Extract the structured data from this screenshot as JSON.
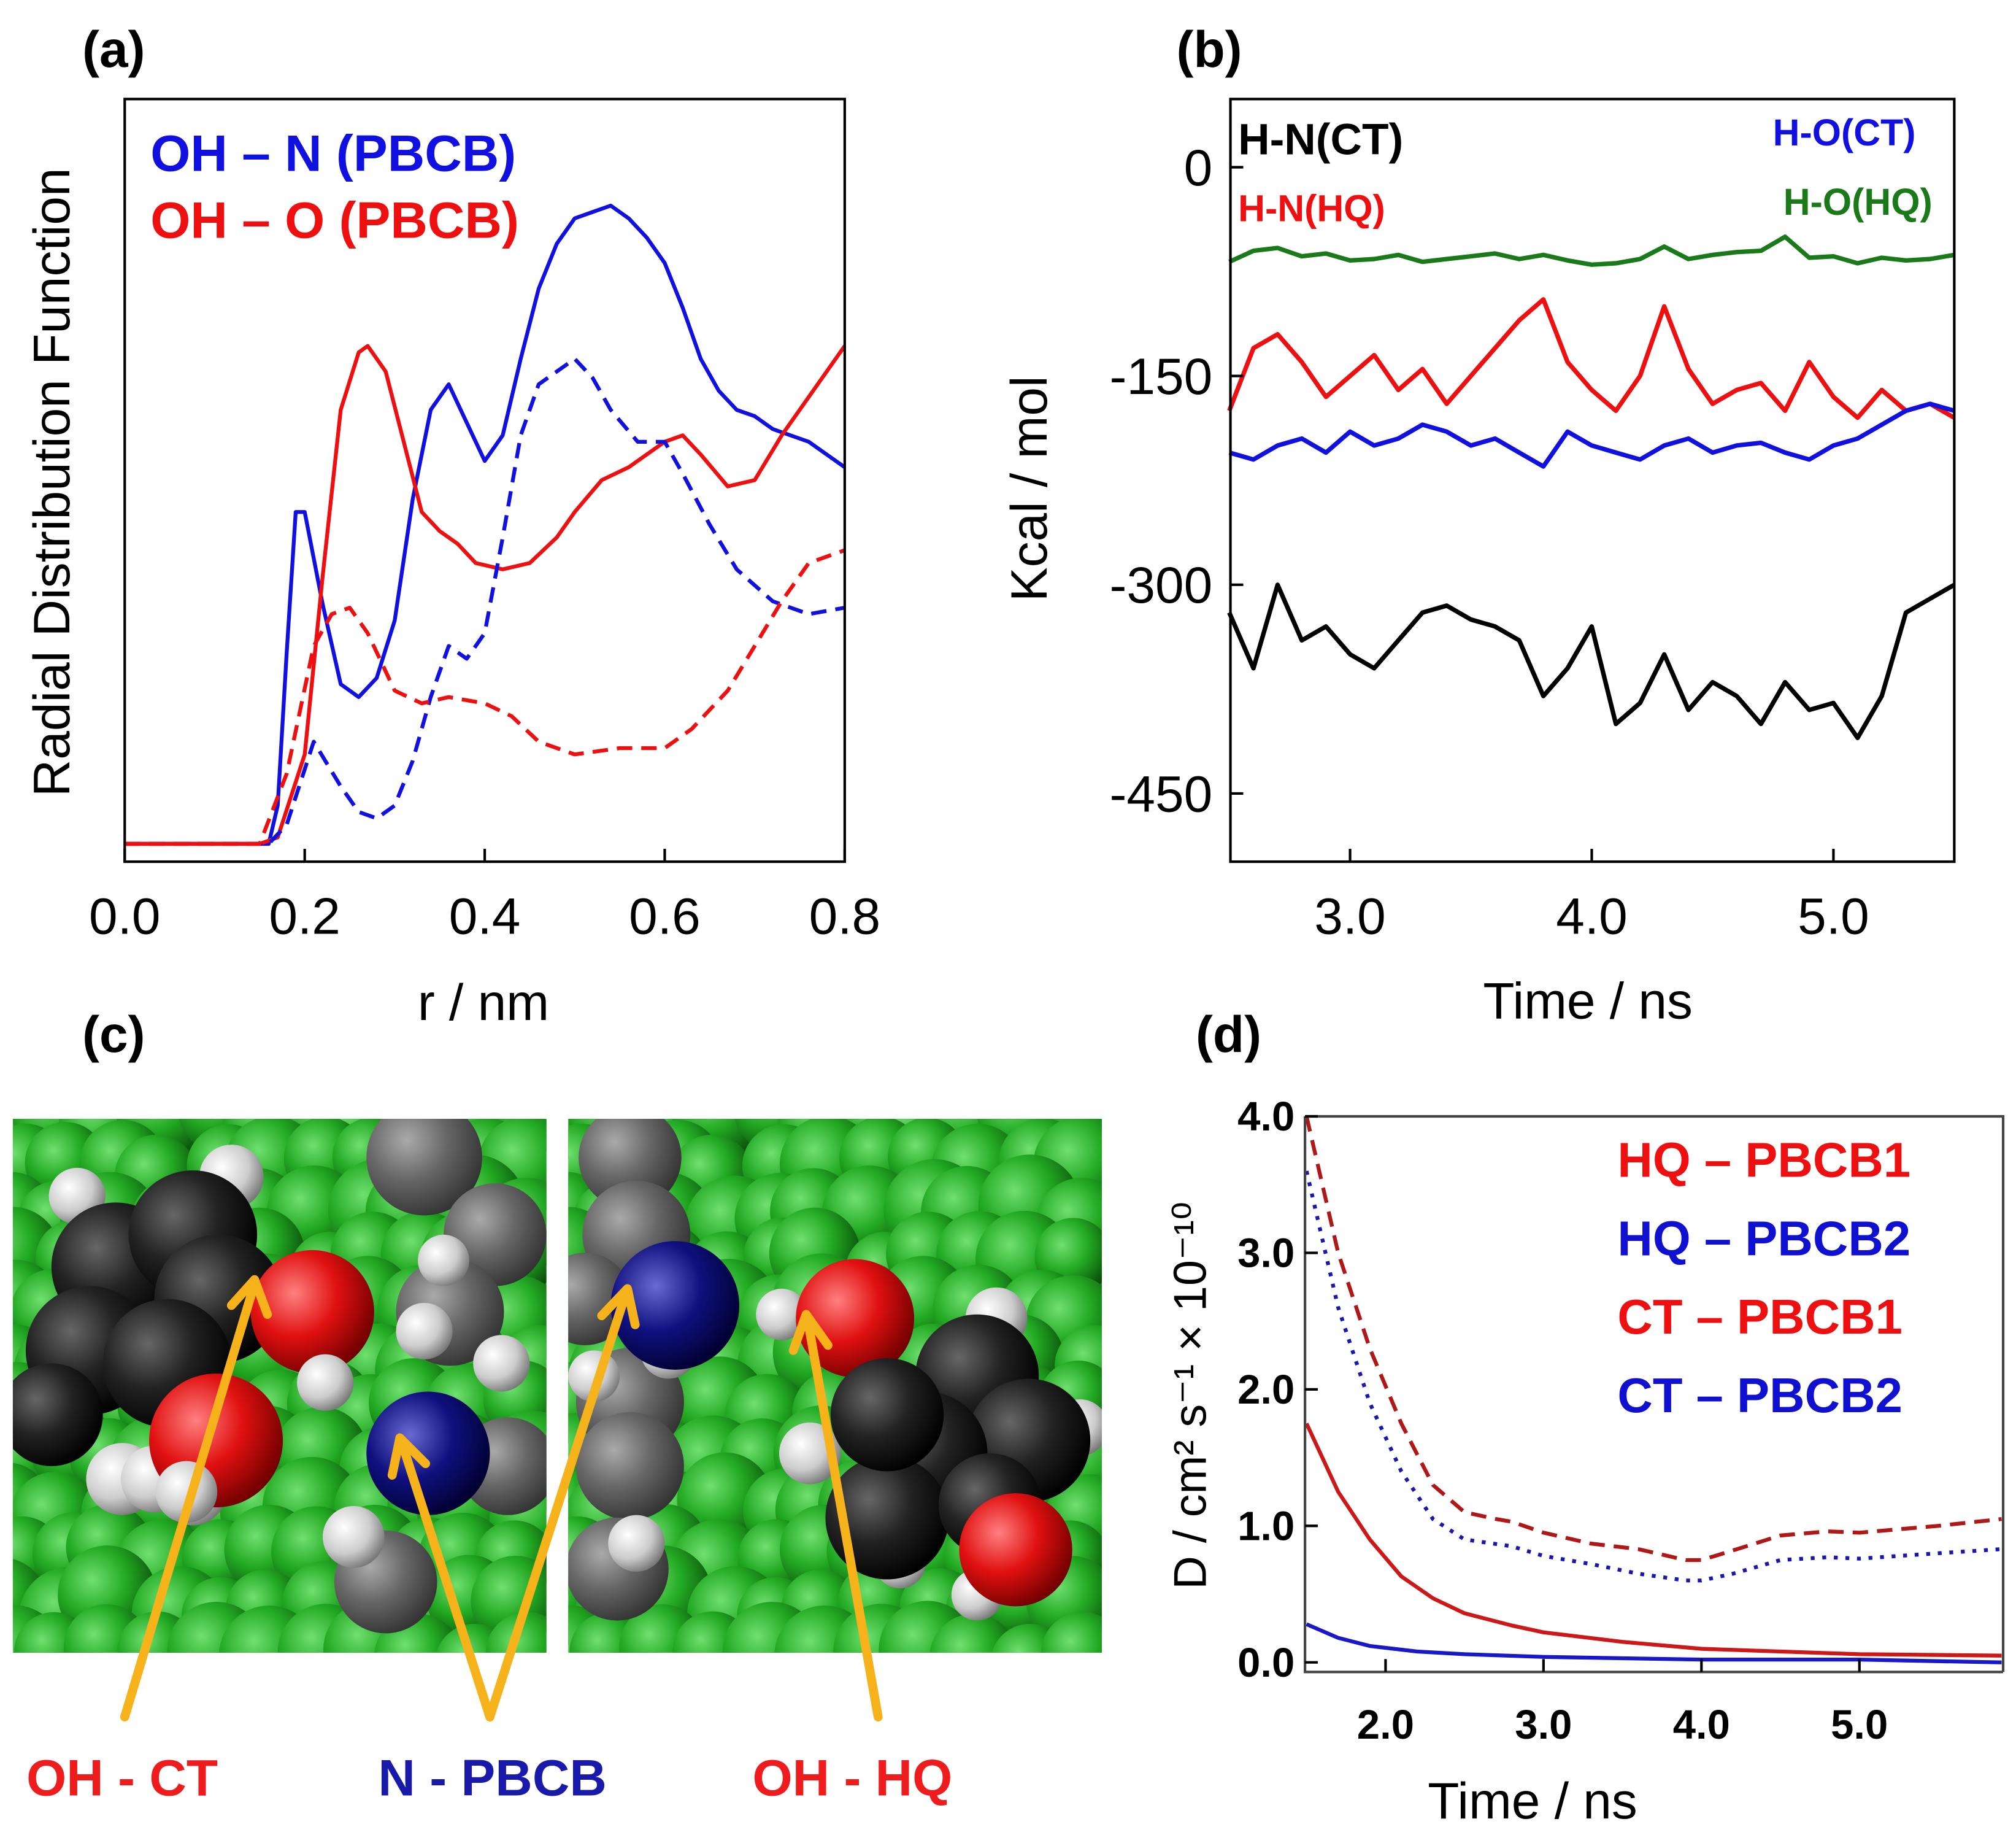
{
  "panel_labels": {
    "a": "(a)",
    "b": "(b)",
    "c": "(c)",
    "d": "(d)"
  },
  "panel_c": {
    "labels": [
      {
        "text": "OH - CT",
        "color": "#ee1c1c"
      },
      {
        "text": "N - PBCB",
        "color": "#1a1aaa"
      },
      {
        "text": "OH - HQ",
        "color": "#ee1c1c"
      }
    ],
    "arrow_color": "#f5b21a",
    "atom_colors": {
      "carbon_sphere_bg": "#1f9e1f",
      "oxygen": "#e01010",
      "nitrogen": "#101080",
      "hydrogen": "#d8d8d8",
      "carbon": "#1a1a1a"
    }
  },
  "chart_data": [
    {
      "id": "a",
      "type": "line",
      "title": "",
      "xlabel": "r / nm",
      "ylabel": "Radial Distribution Function",
      "xlim": [
        0,
        0.8
      ],
      "ylim": [
        -0.028,
        1.167
      ],
      "xticks": [
        0.0,
        0.2,
        0.4,
        0.6,
        0.8
      ],
      "xtick_labels": [
        "0.0",
        "0.2",
        "0.4",
        "0.6",
        "0.8"
      ],
      "yticks": [],
      "legend": {
        "placement": "top-left",
        "entries": [
          {
            "text": "OH – N (PBCB)",
            "color": "#1010e0"
          },
          {
            "text": "OH – O (PBCB)",
            "color": "#ee1010"
          }
        ]
      },
      "series": [
        {
          "name": "OH – N (PBCB) solid",
          "color": "#1010e0",
          "style": "solid",
          "x": [
            0,
            0.16,
            0.17,
            0.18,
            0.19,
            0.2,
            0.22,
            0.24,
            0.26,
            0.28,
            0.3,
            0.32,
            0.34,
            0.36,
            0.38,
            0.4,
            0.42,
            0.44,
            0.46,
            0.48,
            0.5,
            0.52,
            0.54,
            0.56,
            0.58,
            0.6,
            0.62,
            0.64,
            0.66,
            0.68,
            0.7,
            0.72,
            0.76,
            0.8
          ],
          "y": [
            0,
            0,
            0.06,
            0.3,
            0.52,
            0.52,
            0.375,
            0.25,
            0.23,
            0.26,
            0.35,
            0.54,
            0.68,
            0.72,
            0.66,
            0.6,
            0.64,
            0.76,
            0.87,
            0.94,
            0.98,
            0.99,
            1.0,
            0.98,
            0.95,
            0.91,
            0.84,
            0.76,
            0.71,
            0.68,
            0.67,
            0.65,
            0.63,
            0.59
          ]
        },
        {
          "name": "OH – O (PBCB) solid",
          "color": "#ee1010",
          "style": "solid",
          "x": [
            0,
            0.15,
            0.17,
            0.2,
            0.22,
            0.24,
            0.26,
            0.27,
            0.29,
            0.31,
            0.33,
            0.35,
            0.37,
            0.39,
            0.42,
            0.45,
            0.48,
            0.5,
            0.53,
            0.56,
            0.6,
            0.62,
            0.64,
            0.67,
            0.7,
            0.73,
            0.76,
            0.8
          ],
          "y": [
            0,
            0,
            0.01,
            0.14,
            0.42,
            0.68,
            0.77,
            0.78,
            0.74,
            0.63,
            0.52,
            0.49,
            0.47,
            0.44,
            0.43,
            0.44,
            0.48,
            0.52,
            0.57,
            0.59,
            0.63,
            0.64,
            0.61,
            0.56,
            0.57,
            0.64,
            0.7,
            0.78
          ]
        },
        {
          "name": "OH – N (PBCB) dashed",
          "color": "#1010e0",
          "style": "dashed",
          "x": [
            0,
            0.16,
            0.18,
            0.21,
            0.24,
            0.26,
            0.28,
            0.3,
            0.32,
            0.34,
            0.36,
            0.38,
            0.4,
            0.42,
            0.44,
            0.46,
            0.48,
            0.5,
            0.52,
            0.54,
            0.57,
            0.6,
            0.62,
            0.65,
            0.68,
            0.72,
            0.76,
            0.8
          ],
          "y": [
            0,
            0,
            0.03,
            0.16,
            0.09,
            0.05,
            0.04,
            0.06,
            0.13,
            0.23,
            0.31,
            0.29,
            0.33,
            0.48,
            0.64,
            0.72,
            0.74,
            0.76,
            0.73,
            0.68,
            0.63,
            0.63,
            0.58,
            0.5,
            0.43,
            0.38,
            0.36,
            0.37
          ]
        },
        {
          "name": "OH – O (PBCB) dashed",
          "color": "#ee1010",
          "style": "dashed",
          "x": [
            0,
            0.15,
            0.18,
            0.21,
            0.23,
            0.25,
            0.27,
            0.3,
            0.33,
            0.36,
            0.4,
            0.43,
            0.46,
            0.5,
            0.55,
            0.6,
            0.63,
            0.67,
            0.7,
            0.73,
            0.76,
            0.8
          ],
          "y": [
            0,
            0,
            0.11,
            0.31,
            0.36,
            0.37,
            0.33,
            0.24,
            0.22,
            0.23,
            0.22,
            0.2,
            0.16,
            0.14,
            0.15,
            0.15,
            0.18,
            0.24,
            0.31,
            0.38,
            0.44,
            0.46
          ]
        }
      ]
    },
    {
      "id": "b",
      "type": "line",
      "title": "",
      "xlabel": "Time / ns",
      "ylabel": "Kcal / mol",
      "xlim": [
        2.505,
        5.5
      ],
      "ylim": [
        -499,
        49
      ],
      "xticks": [
        3.0,
        4.0,
        5.0
      ],
      "xtick_labels": [
        "3.0",
        "4.0",
        "5.0"
      ],
      "yticks": [
        0,
        -150,
        -300,
        -450
      ],
      "ytick_labels": [
        "0",
        "-150",
        "-300",
        "-450"
      ],
      "legend": {
        "placement": "top",
        "entries": [
          {
            "text": "H-N(CT)",
            "color": "#000000"
          },
          {
            "text": "H-N(HQ)",
            "color": "#ee1010"
          },
          {
            "text": "H-O(CT)",
            "color": "#1010e0"
          },
          {
            "text": "H-O(HQ)",
            "color": "#1a7a1a"
          }
        ]
      },
      "x_common": [
        2.5,
        2.6,
        2.7,
        2.8,
        2.9,
        3.0,
        3.1,
        3.2,
        3.3,
        3.4,
        3.5,
        3.6,
        3.7,
        3.8,
        3.9,
        4.0,
        4.1,
        4.2,
        4.3,
        4.4,
        4.5,
        4.6,
        4.7,
        4.8,
        4.9,
        5.0,
        5.1,
        5.2,
        5.3,
        5.4,
        5.5
      ],
      "series": [
        {
          "name": "H-O(HQ)",
          "color": "#1a7a1a",
          "y": [
            -68,
            -60,
            -58,
            -64,
            -62,
            -67,
            -66,
            -63,
            -68,
            -66,
            -64,
            -62,
            -66,
            -63,
            -67,
            -70,
            -69,
            -66,
            -57,
            -66,
            -63,
            -61,
            -60,
            -50,
            -65,
            -64,
            -69,
            -65,
            -67,
            -66,
            -63
          ]
        },
        {
          "name": "H-N(HQ)",
          "color": "#ee1010",
          "y": [
            -175,
            -130,
            -120,
            -140,
            -165,
            -150,
            -135,
            -160,
            -145,
            -170,
            -150,
            -130,
            -110,
            -95,
            -140,
            -160,
            -175,
            -150,
            -100,
            -145,
            -170,
            -160,
            -155,
            -175,
            -140,
            -165,
            -180,
            -160,
            -175,
            -170,
            -180
          ]
        },
        {
          "name": "H-O(CT)",
          "color": "#1010e0",
          "y": [
            -205,
            -210,
            -200,
            -195,
            -205,
            -190,
            -200,
            -195,
            -185,
            -190,
            -200,
            -195,
            -205,
            -215,
            -190,
            -200,
            -205,
            -210,
            -200,
            -195,
            -205,
            -200,
            -198,
            -205,
            -210,
            -200,
            -195,
            -185,
            -175,
            -170,
            -175
          ]
        },
        {
          "name": "H-N(CT)",
          "color": "#000000",
          "y": [
            -320,
            -360,
            -300,
            -340,
            -330,
            -350,
            -360,
            -340,
            -320,
            -315,
            -325,
            -330,
            -340,
            -380,
            -360,
            -330,
            -400,
            -385,
            -350,
            -390,
            -370,
            -380,
            -400,
            -370,
            -390,
            -385,
            -410,
            -380,
            -320,
            -310,
            -300
          ]
        }
      ]
    },
    {
      "id": "d",
      "type": "line",
      "title": "",
      "xlabel": "Time / ns",
      "ylabel": "D / cm² s⁻¹ × 10⁻¹⁰",
      "xlim": [
        1.49,
        5.91
      ],
      "ylim": [
        -0.07,
        4.0
      ],
      "xticks": [
        2.0,
        3.0,
        4.0,
        5.0
      ],
      "xtick_labels": [
        "2.0",
        "3.0",
        "4.0",
        "5.0"
      ],
      "yticks": [
        0,
        1,
        2,
        3,
        4
      ],
      "ytick_labels": [
        "0.0",
        "1.0",
        "2.0",
        "3.0",
        "4.0"
      ],
      "legend": {
        "placement": "top-right",
        "entries": [
          {
            "text": "HQ – PBCB1",
            "color": "#ee1010"
          },
          {
            "text": "HQ – PBCB2",
            "color": "#1010d0"
          },
          {
            "text": "CT – PBCB1",
            "color": "#ee1010"
          },
          {
            "text": "CT – PBCB2",
            "color": "#1010d0"
          }
        ]
      },
      "series": [
        {
          "name": "HQ – PBCB1",
          "color": "#b01818",
          "style": "dashed",
          "x": [
            1.5,
            1.7,
            1.9,
            2.1,
            2.3,
            2.5,
            2.7,
            2.8,
            3.0,
            3.3,
            3.6,
            3.9,
            4.0,
            4.2,
            4.5,
            4.8,
            5.0,
            5.5,
            5.9
          ],
          "y": [
            4.0,
            3.0,
            2.3,
            1.75,
            1.3,
            1.1,
            1.05,
            1.03,
            0.95,
            0.87,
            0.83,
            0.75,
            0.75,
            0.82,
            0.93,
            0.96,
            0.95,
            1.0,
            1.05
          ]
        },
        {
          "name": "HQ – PBCB2",
          "color": "#1818b0",
          "style": "dotted",
          "x": [
            1.5,
            1.7,
            1.9,
            2.1,
            2.3,
            2.5,
            2.8,
            3.0,
            3.3,
            3.6,
            3.9,
            4.0,
            4.2,
            4.5,
            4.8,
            5.0,
            5.5,
            5.9
          ],
          "y": [
            3.6,
            2.6,
            1.9,
            1.4,
            1.05,
            0.9,
            0.85,
            0.78,
            0.72,
            0.65,
            0.6,
            0.6,
            0.65,
            0.75,
            0.77,
            0.76,
            0.8,
            0.83
          ]
        },
        {
          "name": "CT – PBCB1",
          "color": "#cc1818",
          "style": "solid",
          "x": [
            1.5,
            1.7,
            1.9,
            2.1,
            2.3,
            2.5,
            2.8,
            3.0,
            3.5,
            4.0,
            4.5,
            5.0,
            5.9
          ],
          "y": [
            1.75,
            1.25,
            0.9,
            0.63,
            0.47,
            0.36,
            0.27,
            0.22,
            0.15,
            0.1,
            0.08,
            0.06,
            0.05
          ]
        },
        {
          "name": "CT – PBCB2",
          "color": "#1818c8",
          "style": "solid",
          "x": [
            1.5,
            1.7,
            1.9,
            2.2,
            2.5,
            3.0,
            4.0,
            5.0,
            5.9
          ],
          "y": [
            0.28,
            0.18,
            0.12,
            0.08,
            0.06,
            0.04,
            0.02,
            0.02,
            0.0
          ]
        }
      ]
    }
  ]
}
